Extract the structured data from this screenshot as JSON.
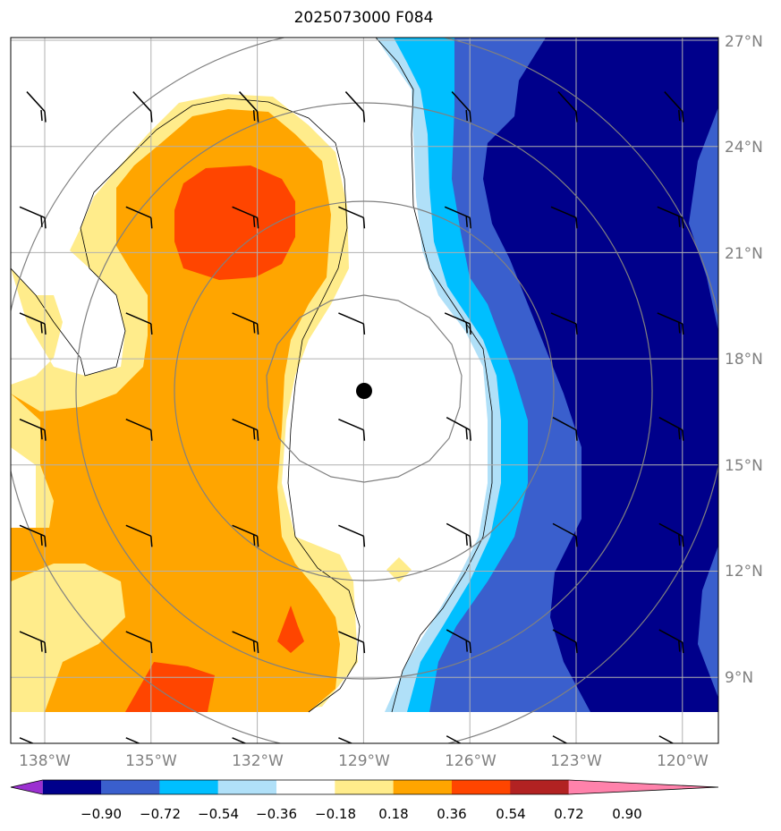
{
  "title": "2025073000 F084",
  "axes": {
    "lon_labels": [
      "138°W",
      "135°W",
      "132°W",
      "129°W",
      "126°W",
      "123°W",
      "120°W"
    ],
    "lat_labels": [
      "27°N",
      "24°N",
      "21°N",
      "18°N",
      "15°N",
      "12°N",
      "9°N"
    ],
    "lon_values": [
      -138,
      -135,
      -132,
      -129,
      -126,
      -123,
      -120
    ],
    "lat_values": [
      27,
      24,
      21,
      18,
      15,
      12,
      9
    ],
    "lon_range": [
      -139,
      -119
    ],
    "lat_range": [
      8,
      27
    ]
  },
  "colorbar": {
    "tick_labels": [
      "−0.90",
      "−0.72",
      "−0.54",
      "−0.36",
      "−0.18",
      "0.18",
      "0.36",
      "0.54",
      "0.72",
      "0.90"
    ],
    "bins": [
      {
        "range": "< −0.90",
        "color": "#9b30d0"
      },
      {
        "range": "−0.90 to −0.72",
        "color": "#00008b"
      },
      {
        "range": "−0.72 to −0.54",
        "color": "#3a5fcd"
      },
      {
        "range": "−0.54 to −0.36",
        "color": "#00bfff"
      },
      {
        "range": "−0.36 to −0.18",
        "color": "#b0e0f8"
      },
      {
        "range": "−0.18 to 0.18",
        "color": "#ffffff"
      },
      {
        "range": "0.18 to 0.36",
        "color": "#ffec8b"
      },
      {
        "range": "0.36 to 0.54",
        "color": "#ffa500"
      },
      {
        "range": "0.54 to 0.72",
        "color": "#ff4500"
      },
      {
        "range": "0.72 to 0.90",
        "color": "#b22222"
      },
      {
        "range": "> 0.90",
        "color": "#ff82ab"
      }
    ]
  },
  "storm_center": {
    "lon": -129.0,
    "lat": 17.0,
    "icon": "storm-center-marker"
  },
  "range_rings": {
    "center_lon": -129.0,
    "center_lat": 17.0,
    "count": 4
  },
  "wind_barbs": {
    "lons": [
      -138,
      -135,
      -132,
      -129,
      -126,
      -123,
      -120
    ],
    "lats": [
      26,
      23,
      20,
      17,
      14,
      11,
      8
    ]
  },
  "colors": {
    "grid": "#b0b0b0",
    "ring": "#808080",
    "label": "#808080",
    "frame": "#000000"
  }
}
